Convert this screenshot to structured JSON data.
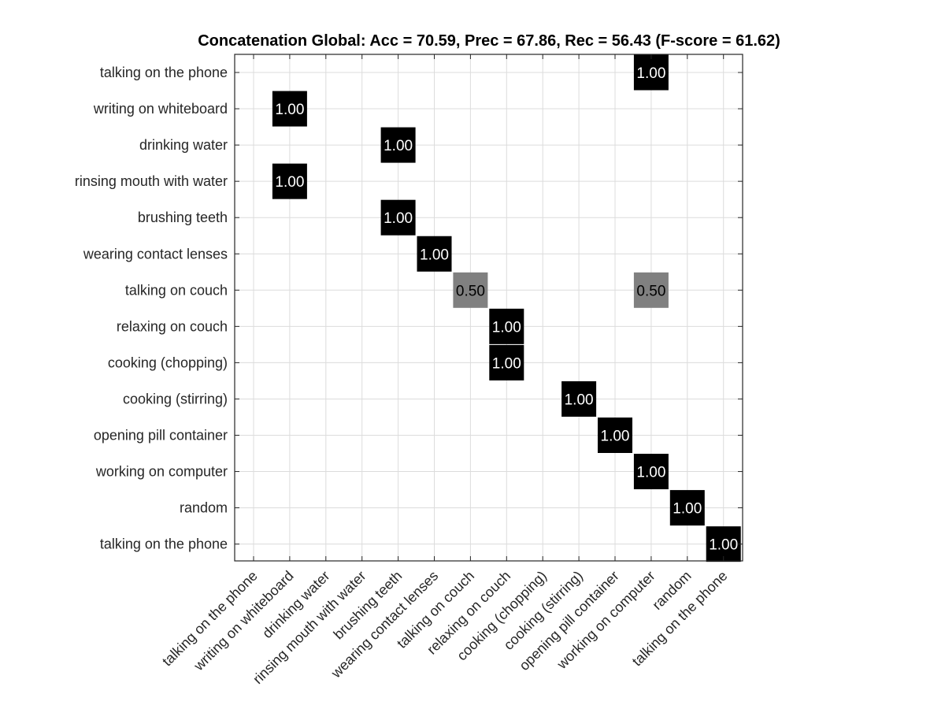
{
  "chart_data": {
    "type": "heatmap",
    "title": "Concatenation Global: Acc = 70.59, Prec = 67.86, Rec = 56.43 (F-score = 61.62)",
    "row_labels": [
      "talking on the phone",
      "writing on whiteboard",
      "drinking water",
      "rinsing mouth with water",
      "brushing teeth",
      "wearing contact lenses",
      "talking on couch",
      "relaxing on couch",
      "cooking (chopping)",
      "cooking (stirring)",
      "opening pill container",
      "working on computer",
      "random",
      "talking on the phone"
    ],
    "col_labels": [
      "talking on the phone",
      "writing on whiteboard",
      "drinking water",
      "rinsing mouth with water",
      "brushing teeth",
      "wearing contact lenses",
      "talking on couch",
      "relaxing on couch",
      "cooking (chopping)",
      "cooking (stirring)",
      "opening pill container",
      "working on computer",
      "random",
      "talking on the phone"
    ],
    "cells": [
      {
        "row": 0,
        "col": 11,
        "value": 1.0,
        "label": "1.00"
      },
      {
        "row": 1,
        "col": 1,
        "value": 1.0,
        "label": "1.00"
      },
      {
        "row": 2,
        "col": 4,
        "value": 1.0,
        "label": "1.00"
      },
      {
        "row": 3,
        "col": 1,
        "value": 1.0,
        "label": "1.00"
      },
      {
        "row": 4,
        "col": 4,
        "value": 1.0,
        "label": "1.00"
      },
      {
        "row": 5,
        "col": 5,
        "value": 1.0,
        "label": "1.00"
      },
      {
        "row": 6,
        "col": 6,
        "value": 0.5,
        "label": "0.50"
      },
      {
        "row": 6,
        "col": 11,
        "value": 0.5,
        "label": "0.50"
      },
      {
        "row": 7,
        "col": 7,
        "value": 1.0,
        "label": "1.00"
      },
      {
        "row": 8,
        "col": 7,
        "value": 1.0,
        "label": "1.00"
      },
      {
        "row": 9,
        "col": 9,
        "value": 1.0,
        "label": "1.00"
      },
      {
        "row": 10,
        "col": 10,
        "value": 1.0,
        "label": "1.00"
      },
      {
        "row": 11,
        "col": 11,
        "value": 1.0,
        "label": "1.00"
      },
      {
        "row": 12,
        "col": 12,
        "value": 1.0,
        "label": "1.00"
      },
      {
        "row": 13,
        "col": 13,
        "value": 1.0,
        "label": "1.00"
      }
    ],
    "value_range": [
      0,
      1
    ],
    "colormap": "white-to-black (value 1 = black, 0 = white)",
    "grid": true,
    "colors": {
      "high": "#000000",
      "mid": "#808080",
      "low": "#ffffff",
      "grid": "#dcdcdc"
    }
  }
}
